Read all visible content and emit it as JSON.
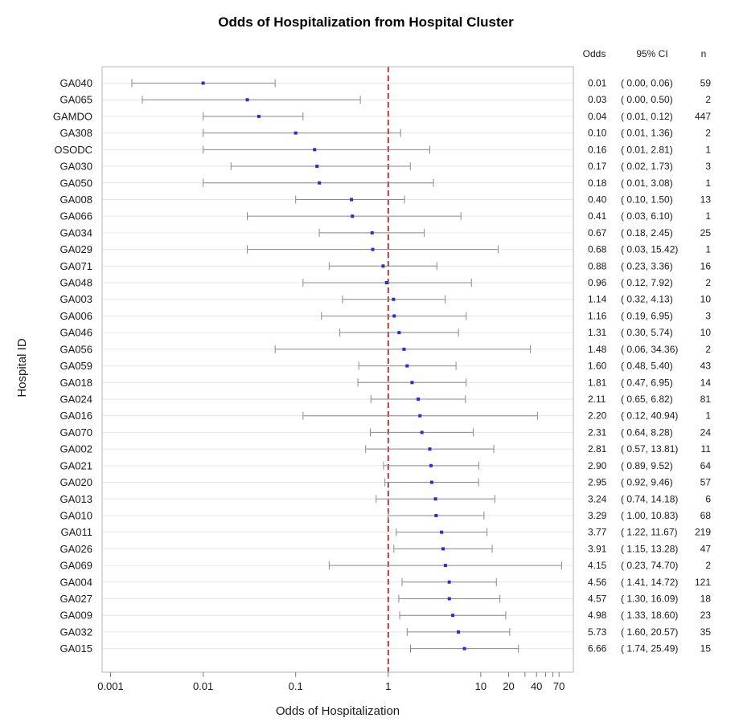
{
  "chart_data": {
    "type": "forest",
    "title": "Odds of Hospitalization from Hospital Cluster",
    "xlabel": "Odds of Hospitalization",
    "ylabel": "Hospital ID",
    "x_scale": "log",
    "xlim": [
      0.0007,
      80
    ],
    "x_ticks": [
      0.001,
      0.01,
      0.1,
      1,
      10,
      20,
      40,
      70
    ],
    "x_tick_labels": [
      "0.001",
      "0.01",
      "0.1",
      "1",
      "10",
      "20",
      "40",
      "70"
    ],
    "x_minor_ticks": [
      30,
      50,
      60
    ],
    "reference_line": 1,
    "grid": true,
    "table_headers": {
      "odds": "Odds",
      "ci": "95% CI",
      "n": "n"
    },
    "colors": {
      "point": "#2b2bd6",
      "ci_line": "#8a8a8a",
      "reference": "#9b1c1c",
      "grid": "#e6e6e6",
      "frame": "#b4b4b4"
    },
    "rows": [
      {
        "id": "GA040",
        "odds": 0.01,
        "lower": 0.0,
        "upper": 0.06,
        "lower_plot": 0.0017,
        "n": 59,
        "odds_label": "0.01",
        "ci_label": "( 0.00,  0.06)",
        "n_label": "59"
      },
      {
        "id": "GA065",
        "odds": 0.03,
        "lower": 0.0,
        "upper": 0.5,
        "lower_plot": 0.0022,
        "n": 2,
        "odds_label": "0.03",
        "ci_label": "( 0.00,  0.50)",
        "n_label": "2"
      },
      {
        "id": "GAMDO",
        "odds": 0.04,
        "lower": 0.01,
        "upper": 0.12,
        "n": 447,
        "odds_label": "0.04",
        "ci_label": "( 0.01,  0.12)",
        "n_label": "447"
      },
      {
        "id": "GA308",
        "odds": 0.1,
        "lower": 0.01,
        "upper": 1.36,
        "n": 2,
        "odds_label": "0.10",
        "ci_label": "( 0.01,  1.36)",
        "n_label": "2"
      },
      {
        "id": "OSODC",
        "odds": 0.16,
        "lower": 0.01,
        "upper": 2.81,
        "n": 1,
        "odds_label": "0.16",
        "ci_label": "( 0.01,  2.81)",
        "n_label": "1"
      },
      {
        "id": "GA030",
        "odds": 0.17,
        "lower": 0.02,
        "upper": 1.73,
        "n": 3,
        "odds_label": "0.17",
        "ci_label": "( 0.02,  1.73)",
        "n_label": "3"
      },
      {
        "id": "GA050",
        "odds": 0.18,
        "lower": 0.01,
        "upper": 3.08,
        "n": 1,
        "odds_label": "0.18",
        "ci_label": "( 0.01,  3.08)",
        "n_label": "1"
      },
      {
        "id": "GA008",
        "odds": 0.4,
        "lower": 0.1,
        "upper": 1.5,
        "n": 13,
        "odds_label": "0.40",
        "ci_label": "( 0.10,  1.50)",
        "n_label": "13"
      },
      {
        "id": "GA066",
        "odds": 0.41,
        "lower": 0.03,
        "upper": 6.1,
        "n": 1,
        "odds_label": "0.41",
        "ci_label": "( 0.03,  6.10)",
        "n_label": "1"
      },
      {
        "id": "GA034",
        "odds": 0.67,
        "lower": 0.18,
        "upper": 2.45,
        "n": 25,
        "odds_label": "0.67",
        "ci_label": "( 0.18,  2.45)",
        "n_label": "25"
      },
      {
        "id": "GA029",
        "odds": 0.68,
        "lower": 0.03,
        "upper": 15.42,
        "n": 1,
        "odds_label": "0.68",
        "ci_label": "( 0.03, 15.42)",
        "n_label": "1"
      },
      {
        "id": "GA071",
        "odds": 0.88,
        "lower": 0.23,
        "upper": 3.36,
        "n": 16,
        "odds_label": "0.88",
        "ci_label": "( 0.23,  3.36)",
        "n_label": "16"
      },
      {
        "id": "GA048",
        "odds": 0.96,
        "lower": 0.12,
        "upper": 7.92,
        "n": 2,
        "odds_label": "0.96",
        "ci_label": "( 0.12,  7.92)",
        "n_label": "2"
      },
      {
        "id": "GA003",
        "odds": 1.14,
        "lower": 0.32,
        "upper": 4.13,
        "n": 10,
        "odds_label": "1.14",
        "ci_label": "( 0.32,  4.13)",
        "n_label": "10"
      },
      {
        "id": "GA006",
        "odds": 1.16,
        "lower": 0.19,
        "upper": 6.95,
        "n": 3,
        "odds_label": "1.16",
        "ci_label": "( 0.19,  6.95)",
        "n_label": "3"
      },
      {
        "id": "GA046",
        "odds": 1.31,
        "lower": 0.3,
        "upper": 5.74,
        "n": 10,
        "odds_label": "1.31",
        "ci_label": "( 0.30,  5.74)",
        "n_label": "10"
      },
      {
        "id": "GA056",
        "odds": 1.48,
        "lower": 0.06,
        "upper": 34.36,
        "n": 2,
        "odds_label": "1.48",
        "ci_label": "( 0.06, 34.36)",
        "n_label": "2"
      },
      {
        "id": "GA059",
        "odds": 1.6,
        "lower": 0.48,
        "upper": 5.4,
        "n": 43,
        "odds_label": "1.60",
        "ci_label": "( 0.48,  5.40)",
        "n_label": "43"
      },
      {
        "id": "GA018",
        "odds": 1.81,
        "lower": 0.47,
        "upper": 6.95,
        "n": 14,
        "odds_label": "1.81",
        "ci_label": "( 0.47,  6.95)",
        "n_label": "14"
      },
      {
        "id": "GA024",
        "odds": 2.11,
        "lower": 0.65,
        "upper": 6.82,
        "n": 81,
        "odds_label": "2.11",
        "ci_label": "( 0.65,  6.82)",
        "n_label": "81"
      },
      {
        "id": "GA016",
        "odds": 2.2,
        "lower": 0.12,
        "upper": 40.94,
        "n": 1,
        "odds_label": "2.20",
        "ci_label": "( 0.12, 40.94)",
        "n_label": "1"
      },
      {
        "id": "GA070",
        "odds": 2.31,
        "lower": 0.64,
        "upper": 8.28,
        "n": 24,
        "odds_label": "2.31",
        "ci_label": "( 0.64,  8.28)",
        "n_label": "24"
      },
      {
        "id": "GA002",
        "odds": 2.81,
        "lower": 0.57,
        "upper": 13.81,
        "n": 11,
        "odds_label": "2.81",
        "ci_label": "( 0.57, 13.81)",
        "n_label": "11"
      },
      {
        "id": "GA021",
        "odds": 2.9,
        "lower": 0.89,
        "upper": 9.52,
        "n": 64,
        "odds_label": "2.90",
        "ci_label": "( 0.89,  9.52)",
        "n_label": "64"
      },
      {
        "id": "GA020",
        "odds": 2.95,
        "lower": 0.92,
        "upper": 9.46,
        "n": 57,
        "odds_label": "2.95",
        "ci_label": "( 0.92,  9.46)",
        "n_label": "57"
      },
      {
        "id": "GA013",
        "odds": 3.24,
        "lower": 0.74,
        "upper": 14.18,
        "n": 6,
        "odds_label": "3.24",
        "ci_label": "( 0.74, 14.18)",
        "n_label": "6"
      },
      {
        "id": "GA010",
        "odds": 3.29,
        "lower": 1.0,
        "upper": 10.83,
        "n": 68,
        "odds_label": "3.29",
        "ci_label": "( 1.00, 10.83)",
        "n_label": "68"
      },
      {
        "id": "GA011",
        "odds": 3.77,
        "lower": 1.22,
        "upper": 11.67,
        "n": 219,
        "odds_label": "3.77",
        "ci_label": "( 1.22, 11.67)",
        "n_label": "219"
      },
      {
        "id": "GA026",
        "odds": 3.91,
        "lower": 1.15,
        "upper": 13.28,
        "n": 47,
        "odds_label": "3.91",
        "ci_label": "( 1.15, 13.28)",
        "n_label": "47"
      },
      {
        "id": "GA069",
        "odds": 4.15,
        "lower": 0.23,
        "upper": 74.7,
        "n": 2,
        "odds_label": "4.15",
        "ci_label": "( 0.23, 74.70)",
        "n_label": "2"
      },
      {
        "id": "GA004",
        "odds": 4.56,
        "lower": 1.41,
        "upper": 14.72,
        "n": 121,
        "odds_label": "4.56",
        "ci_label": "( 1.41, 14.72)",
        "n_label": "121"
      },
      {
        "id": "GA027",
        "odds": 4.57,
        "lower": 1.3,
        "upper": 16.09,
        "n": 18,
        "odds_label": "4.57",
        "ci_label": "( 1.30, 16.09)",
        "n_label": "18"
      },
      {
        "id": "GA009",
        "odds": 4.98,
        "lower": 1.33,
        "upper": 18.6,
        "n": 23,
        "odds_label": "4.98",
        "ci_label": "( 1.33, 18.60)",
        "n_label": "23"
      },
      {
        "id": "GA032",
        "odds": 5.73,
        "lower": 1.6,
        "upper": 20.57,
        "n": 35,
        "odds_label": "5.73",
        "ci_label": "( 1.60, 20.57)",
        "n_label": "35"
      },
      {
        "id": "GA015",
        "odds": 6.66,
        "lower": 1.74,
        "upper": 25.49,
        "n": 15,
        "odds_label": "6.66",
        "ci_label": "( 1.74, 25.49)",
        "n_label": "15"
      }
    ]
  }
}
